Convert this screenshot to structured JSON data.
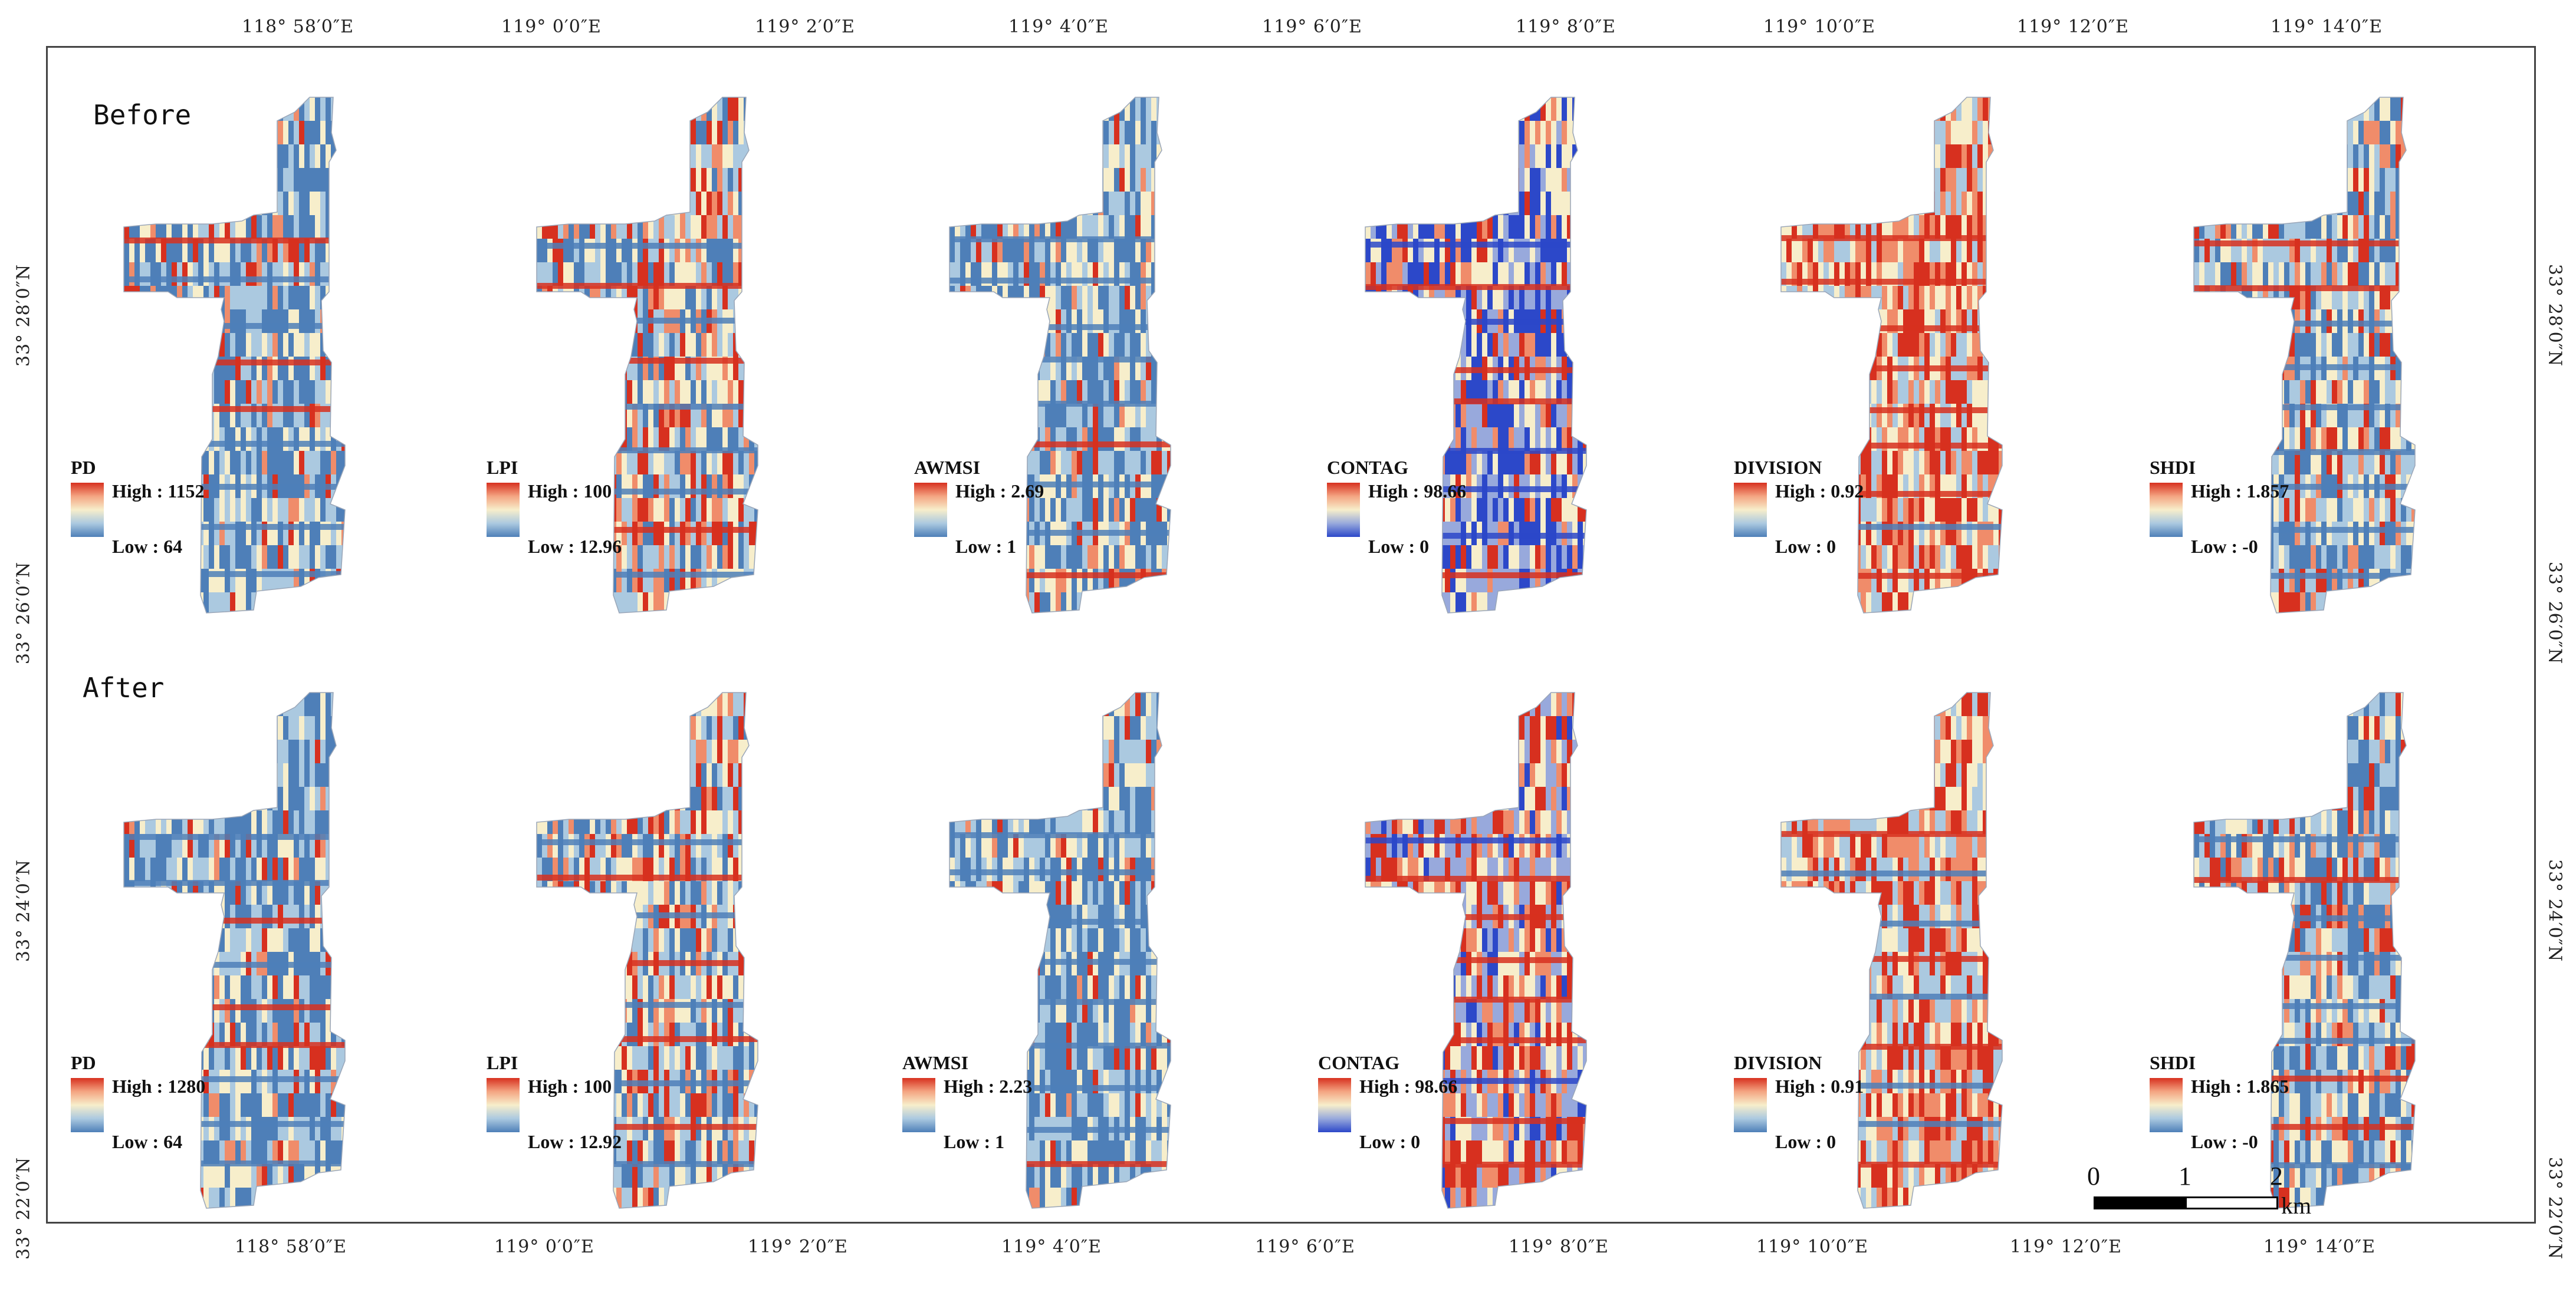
{
  "rows": [
    "Before",
    "After"
  ],
  "top_ticks": [
    "118° 58′0″E",
    "119° 0′0″E",
    "119° 2′0″E",
    "119° 4′0″E",
    "119° 6′0″E",
    "119° 8′0″E",
    "119° 10′0″E",
    "119° 12′0″E",
    "119° 14′0″E"
  ],
  "bottom_ticks": [
    "118° 58′0″E",
    "119° 0′0″E",
    "119° 2′0″E",
    "119° 4′0″E",
    "119° 6′0″E",
    "119° 8′0″E",
    "119° 10′0″E",
    "119° 12′0″E",
    "119° 14′0″E"
  ],
  "left_ticks": [
    "33° 28′0″N",
    "33° 26′0″N",
    "33° 24′0″N",
    "33° 22′0″N"
  ],
  "right_ticks": [
    "33° 28′0″N",
    "33° 26′0″N",
    "33° 24′0″N",
    "33° 22′0″N"
  ],
  "before": [
    {
      "name": "PD",
      "high": "High : 1152",
      "low": "Low : 64",
      "redness": 0.15
    },
    {
      "name": "LPI",
      "high": "High : 100",
      "low": "Low : 12.96",
      "redness": 0.42
    },
    {
      "name": "AWMSI",
      "high": "High : 2.69",
      "low": "Low : 1",
      "redness": 0.2
    },
    {
      "name": "CONTAG",
      "high": "High : 98.66",
      "low": "Low : 0",
      "redness": 0.25
    },
    {
      "name": "DIVISION",
      "high": "High : 0.92",
      "low": "Low : 0",
      "redness": 0.7
    },
    {
      "name": "SHDI",
      "high": "High : 1.857",
      "low": "Low : -0",
      "redness": 0.3
    }
  ],
  "after": [
    {
      "name": "PD",
      "high": "High : 1280",
      "low": "Low : 64",
      "redness": 0.15
    },
    {
      "name": "LPI",
      "high": "High : 100",
      "low": "Low : 12.92",
      "redness": 0.35
    },
    {
      "name": "AWMSI",
      "high": "High : 2.23",
      "low": "Low : 1",
      "redness": 0.12
    },
    {
      "name": "CONTAG",
      "high": "High : 98.66",
      "low": "Low : 0",
      "redness": 0.55
    },
    {
      "name": "DIVISION",
      "high": "High : 0.91",
      "low": "Low : 0",
      "redness": 0.65
    },
    {
      "name": "SHDI",
      "high": "High : 1.865",
      "low": "Low : -0",
      "redness": 0.3
    }
  ],
  "scale": {
    "labels": [
      "0",
      "1",
      "2"
    ],
    "unit": "km"
  },
  "colors": {
    "high": "#d7301f",
    "mid": "#f7eecb",
    "low": "#4e7fb8",
    "contag_low": "#2c48c9"
  }
}
